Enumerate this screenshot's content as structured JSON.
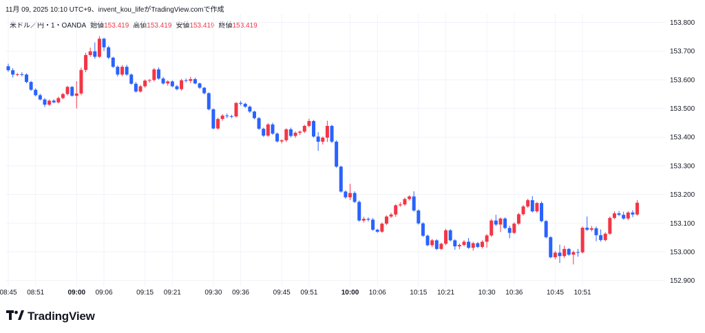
{
  "caption": "11月 09, 2025 10:10 UTC+9、invent_kou_lifeがTradingView.comで作成",
  "legend": {
    "symbol": "米ドル／円・1・OANDA",
    "open_label": "始値",
    "open_value": "153.419",
    "high_label": "高値",
    "high_value": "153.419",
    "low_label": "安値",
    "low_value": "153.419",
    "close_label": "終値",
    "close_value": "153.419"
  },
  "brand": {
    "name": "TradingView",
    "logo_icon": "tradingview-logo-icon"
  },
  "colors": {
    "up": "#f23645",
    "down": "#2962ff",
    "grid": "#f0f3fa",
    "axis_text": "#131722"
  },
  "chart_data": {
    "type": "candlestick",
    "title": "米ドル／円・1・OANDA",
    "y_ticks": [
      152.9,
      153.0,
      153.1,
      153.2,
      153.3,
      153.4,
      153.5,
      153.6,
      153.7,
      153.8
    ],
    "y_tick_labels": [
      "152.900",
      "153.000",
      "153.100",
      "153.200",
      "153.300",
      "153.400",
      "153.500",
      "153.600",
      "153.700",
      "153.800"
    ],
    "ylim": [
      152.88,
      153.83
    ],
    "x_tick_labels": [
      {
        "label": "08:45",
        "index": 0,
        "bold": false
      },
      {
        "label": "08:51",
        "index": 6,
        "bold": false
      },
      {
        "label": "09:00",
        "index": 15,
        "bold": true
      },
      {
        "label": "09:06",
        "index": 21,
        "bold": false
      },
      {
        "label": "09:15",
        "index": 30,
        "bold": false
      },
      {
        "label": "09:21",
        "index": 36,
        "bold": false
      },
      {
        "label": "09:30",
        "index": 45,
        "bold": false
      },
      {
        "label": "09:36",
        "index": 51,
        "bold": false
      },
      {
        "label": "09:45",
        "index": 60,
        "bold": false
      },
      {
        "label": "09:51",
        "index": 66,
        "bold": false
      },
      {
        "label": "10:00",
        "index": 75,
        "bold": true
      },
      {
        "label": "10:06",
        "index": 81,
        "bold": false
      },
      {
        "label": "10:15",
        "index": 90,
        "bold": false
      },
      {
        "label": "10:21",
        "index": 96,
        "bold": false
      },
      {
        "label": "10:30",
        "index": 105,
        "bold": false
      },
      {
        "label": "10:36",
        "index": 111,
        "bold": false
      },
      {
        "label": "10:45",
        "index": 120,
        "bold": false
      },
      {
        "label": "10:51",
        "index": 126,
        "bold": false
      }
    ],
    "ohlc": [
      [
        153.647,
        153.656,
        153.628,
        153.633
      ],
      [
        153.633,
        153.64,
        153.608,
        153.618
      ],
      [
        153.618,
        153.624,
        153.612,
        153.619
      ],
      [
        153.619,
        153.626,
        153.612,
        153.618
      ],
      [
        153.618,
        153.622,
        153.588,
        153.592
      ],
      [
        153.592,
        153.596,
        153.561,
        153.565
      ],
      [
        153.565,
        153.57,
        153.542,
        153.546
      ],
      [
        153.546,
        153.551,
        153.528,
        153.531
      ],
      [
        153.531,
        153.536,
        153.505,
        153.513
      ],
      [
        153.513,
        153.531,
        153.509,
        153.527
      ],
      [
        153.527,
        153.532,
        153.518,
        153.521
      ],
      [
        153.521,
        153.541,
        153.517,
        153.536
      ],
      [
        153.536,
        153.554,
        153.532,
        153.55
      ],
      [
        153.55,
        153.579,
        153.545,
        153.575
      ],
      [
        153.575,
        153.578,
        153.541,
        153.544
      ],
      [
        153.544,
        153.595,
        153.5,
        153.552
      ],
      [
        153.552,
        153.642,
        153.546,
        153.634
      ],
      [
        153.634,
        153.694,
        153.626,
        153.686
      ],
      [
        153.686,
        153.712,
        153.68,
        153.699
      ],
      [
        153.699,
        153.73,
        153.673,
        153.68
      ],
      [
        153.68,
        153.752,
        153.676,
        153.743
      ],
      [
        153.743,
        153.746,
        153.7,
        153.713
      ],
      [
        153.713,
        153.718,
        153.672,
        153.677
      ],
      [
        153.677,
        153.68,
        153.641,
        153.645
      ],
      [
        153.645,
        153.65,
        153.611,
        153.618
      ],
      [
        153.618,
        153.651,
        153.612,
        153.645
      ],
      [
        153.645,
        153.652,
        153.614,
        153.618
      ],
      [
        153.618,
        153.622,
        153.583,
        153.586
      ],
      [
        153.586,
        153.592,
        153.555,
        153.559
      ],
      [
        153.559,
        153.582,
        153.555,
        153.577
      ],
      [
        153.577,
        153.601,
        153.572,
        153.597
      ],
      [
        153.597,
        153.602,
        153.59,
        153.599
      ],
      [
        153.599,
        153.641,
        153.594,
        153.636
      ],
      [
        153.636,
        153.643,
        153.6,
        153.604
      ],
      [
        153.604,
        153.61,
        153.583,
        153.587
      ],
      [
        153.587,
        153.598,
        153.579,
        153.594
      ],
      [
        153.594,
        153.598,
        153.574,
        153.577
      ],
      [
        153.577,
        153.582,
        153.563,
        153.567
      ],
      [
        153.567,
        153.603,
        153.562,
        153.598
      ],
      [
        153.598,
        153.604,
        153.591,
        153.596
      ],
      [
        153.596,
        153.61,
        153.588,
        153.602
      ],
      [
        153.602,
        153.607,
        153.584,
        153.587
      ],
      [
        153.587,
        153.59,
        153.568,
        153.572
      ],
      [
        153.572,
        153.575,
        153.549,
        153.553
      ],
      [
        153.553,
        153.556,
        153.493,
        153.497
      ],
      [
        153.497,
        153.5,
        153.427,
        153.43
      ],
      [
        153.43,
        153.468,
        153.426,
        153.463
      ],
      [
        153.463,
        153.48,
        153.457,
        153.475
      ],
      [
        153.475,
        153.482,
        153.466,
        153.473
      ],
      [
        153.473,
        153.478,
        153.466,
        153.472
      ],
      [
        153.472,
        153.522,
        153.468,
        153.519
      ],
      [
        153.519,
        153.526,
        153.51,
        153.516
      ],
      [
        153.516,
        153.52,
        153.502,
        153.506
      ],
      [
        153.506,
        153.51,
        153.484,
        153.489
      ],
      [
        153.489,
        153.492,
        153.462,
        153.466
      ],
      [
        153.466,
        153.47,
        153.425,
        153.429
      ],
      [
        153.429,
        153.433,
        153.401,
        153.405
      ],
      [
        153.405,
        153.449,
        153.401,
        153.444
      ],
      [
        153.444,
        153.45,
        153.408,
        153.412
      ],
      [
        153.412,
        153.416,
        153.381,
        153.385
      ],
      [
        153.385,
        153.392,
        153.378,
        153.389
      ],
      [
        153.389,
        153.431,
        153.383,
        153.427
      ],
      [
        153.427,
        153.433,
        153.399,
        153.404
      ],
      [
        153.404,
        153.42,
        153.397,
        153.415
      ],
      [
        153.415,
        153.423,
        153.407,
        153.419
      ],
      [
        153.419,
        153.443,
        153.414,
        153.439
      ],
      [
        153.439,
        153.464,
        153.434,
        153.456
      ],
      [
        153.456,
        153.46,
        153.398,
        153.402
      ],
      [
        153.402,
        153.417,
        153.352,
        153.384
      ],
      [
        153.384,
        153.402,
        153.374,
        153.398
      ],
      [
        153.398,
        153.457,
        153.383,
        153.439
      ],
      [
        153.439,
        153.443,
        153.379,
        153.384
      ],
      [
        153.384,
        153.389,
        153.293,
        153.297
      ],
      [
        153.297,
        153.3,
        153.206,
        153.21
      ],
      [
        153.21,
        153.214,
        153.185,
        153.19
      ],
      [
        153.19,
        153.237,
        153.18,
        153.205
      ],
      [
        153.205,
        153.211,
        153.17,
        153.174
      ],
      [
        153.174,
        153.179,
        153.105,
        153.109
      ],
      [
        153.109,
        153.122,
        153.102,
        153.115
      ],
      [
        153.115,
        153.12,
        153.106,
        153.112
      ],
      [
        153.112,
        153.118,
        153.073,
        153.077
      ],
      [
        153.077,
        153.08,
        153.066,
        153.07
      ],
      [
        153.07,
        153.102,
        153.066,
        153.098
      ],
      [
        153.098,
        153.127,
        153.093,
        153.123
      ],
      [
        153.123,
        153.136,
        153.118,
        153.13
      ],
      [
        153.13,
        153.166,
        153.122,
        153.162
      ],
      [
        153.162,
        153.173,
        153.157,
        153.165
      ],
      [
        153.165,
        153.189,
        153.16,
        153.184
      ],
      [
        153.184,
        153.197,
        153.179,
        153.193
      ],
      [
        153.193,
        153.211,
        153.14,
        153.144
      ],
      [
        153.144,
        153.148,
        153.095,
        153.099
      ],
      [
        153.099,
        153.103,
        153.052,
        153.056
      ],
      [
        153.056,
        153.06,
        153.019,
        153.023
      ],
      [
        153.023,
        153.045,
        153.016,
        153.04
      ],
      [
        153.04,
        153.044,
        153.006,
        153.01
      ],
      [
        153.01,
        153.032,
        153.006,
        153.028
      ],
      [
        153.028,
        153.08,
        153.023,
        153.075
      ],
      [
        153.075,
        153.079,
        153.036,
        153.04
      ],
      [
        153.04,
        153.044,
        153.007,
        153.019
      ],
      [
        153.019,
        153.029,
        153.009,
        153.024
      ],
      [
        153.024,
        153.041,
        153.019,
        153.035
      ],
      [
        153.035,
        153.048,
        153.01,
        153.014
      ],
      [
        153.014,
        153.035,
        153.004,
        153.03
      ],
      [
        153.03,
        153.034,
        153.013,
        153.017
      ],
      [
        153.017,
        153.04,
        153.012,
        153.035
      ],
      [
        153.035,
        153.062,
        153.014,
        153.057
      ],
      [
        153.057,
        153.115,
        153.052,
        153.109
      ],
      [
        153.109,
        153.129,
        153.09,
        153.095
      ],
      [
        153.095,
        153.12,
        153.069,
        153.116
      ],
      [
        153.116,
        153.12,
        153.079,
        153.083
      ],
      [
        153.083,
        153.091,
        153.047,
        153.066
      ],
      [
        153.066,
        153.103,
        153.062,
        153.098
      ],
      [
        153.098,
        153.136,
        153.094,
        153.131
      ],
      [
        153.131,
        153.163,
        153.126,
        153.158
      ],
      [
        153.158,
        153.185,
        153.153,
        153.18
      ],
      [
        153.18,
        153.194,
        153.137,
        153.141
      ],
      [
        153.141,
        153.174,
        153.136,
        153.17
      ],
      [
        153.17,
        153.176,
        153.103,
        153.107
      ],
      [
        153.107,
        153.111,
        153.047,
        153.051
      ],
      [
        153.051,
        153.054,
        152.977,
        152.981
      ],
      [
        152.981,
        153.003,
        152.974,
        152.997
      ],
      [
        152.997,
        153.025,
        152.961,
        152.985
      ],
      [
        152.985,
        153.021,
        152.979,
        153.01
      ],
      [
        153.01,
        153.013,
        152.986,
        152.99
      ],
      [
        152.99,
        153.004,
        152.956,
        152.999
      ],
      [
        152.999,
        153.01,
        152.983,
        152.998
      ],
      [
        152.998,
        153.088,
        152.994,
        153.084
      ],
      [
        153.084,
        153.123,
        153.072,
        153.077
      ],
      [
        153.077,
        153.09,
        153.071,
        153.082
      ],
      [
        153.082,
        153.088,
        153.037,
        153.058
      ],
      [
        153.058,
        153.078,
        153.036,
        153.041
      ],
      [
        153.041,
        153.068,
        153.036,
        153.063
      ],
      [
        153.063,
        153.123,
        153.059,
        153.118
      ],
      [
        153.118,
        153.141,
        153.114,
        153.134
      ],
      [
        153.134,
        153.142,
        153.124,
        153.129
      ],
      [
        153.129,
        153.14,
        153.112,
        153.116
      ],
      [
        153.116,
        153.142,
        153.11,
        153.137
      ],
      [
        153.137,
        153.145,
        153.121,
        153.13
      ],
      [
        153.13,
        153.18,
        153.126,
        153.171
      ]
    ]
  }
}
